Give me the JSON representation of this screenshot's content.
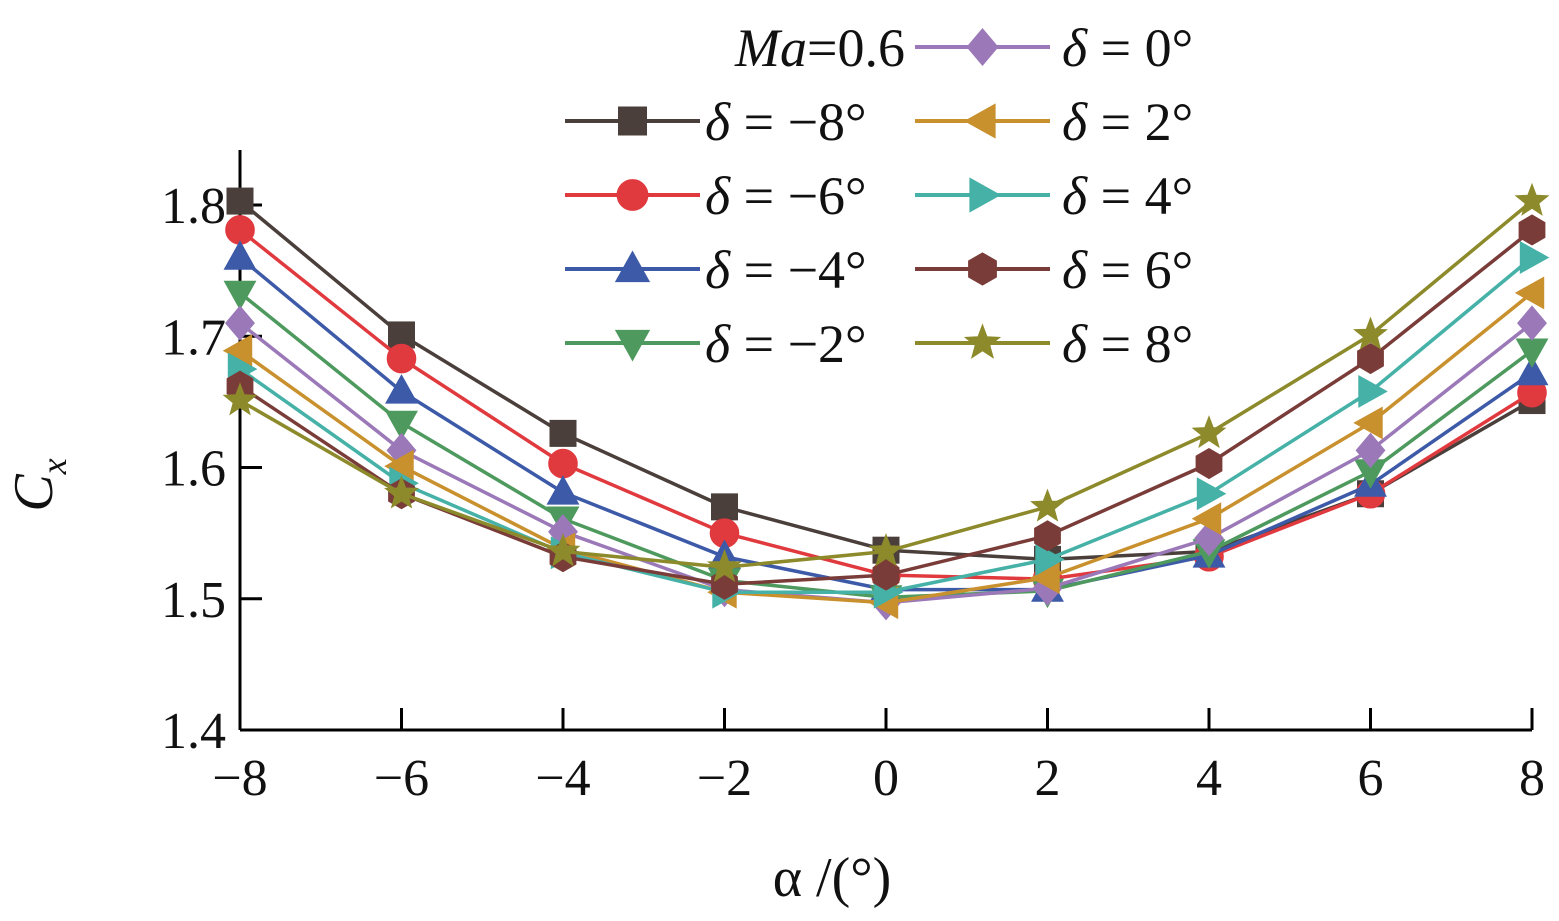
{
  "chart_data": {
    "type": "line",
    "title": "",
    "xlabel": "α /(°)",
    "ylabel": "Cx",
    "ylabel_parts": {
      "main": "C",
      "sub": "x"
    },
    "x": [
      -8,
      -6,
      -4,
      -2,
      0,
      2,
      4,
      6,
      8
    ],
    "x_tick_labels": [
      "−8",
      "−6",
      "−4",
      "−2",
      "0",
      "2",
      "4",
      "6",
      "8"
    ],
    "y_ticks": [
      1.4,
      1.5,
      1.6,
      1.7,
      1.8
    ],
    "y_tick_labels": [
      "1.4",
      "1.5",
      "1.6",
      "1.7",
      "1.8"
    ],
    "xlim": [
      -8,
      8
    ],
    "ylim": [
      1.4,
      1.8
    ],
    "grid": false,
    "legend_position": "top-center",
    "legend_header": "Ma=0.6",
    "series": [
      {
        "name": "δ = −8°",
        "color": "#4a3f3b",
        "marker": "square",
        "values": [
          1.803,
          1.701,
          1.626,
          1.57,
          1.537,
          1.53,
          1.536,
          1.58,
          1.651
        ]
      },
      {
        "name": "δ = −6°",
        "color": "#e0393e",
        "marker": "circle",
        "values": [
          1.781,
          1.683,
          1.603,
          1.55,
          1.518,
          1.515,
          1.532,
          1.58,
          1.657
        ]
      },
      {
        "name": "δ = −4°",
        "color": "#3d5aa8",
        "marker": "triangle-up",
        "values": [
          1.76,
          1.658,
          1.581,
          1.532,
          1.507,
          1.507,
          1.533,
          1.587,
          1.672
        ]
      },
      {
        "name": "δ = −2°",
        "color": "#4e9a5e",
        "marker": "triangle-down",
        "values": [
          1.733,
          1.634,
          1.561,
          1.514,
          1.501,
          1.506,
          1.536,
          1.597,
          1.689
        ]
      },
      {
        "name": "δ = 0°",
        "color": "#9b78b8",
        "marker": "diamond",
        "values": [
          1.71,
          1.613,
          1.551,
          1.507,
          1.497,
          1.508,
          1.546,
          1.613,
          1.71
        ]
      },
      {
        "name": "δ = 2°",
        "color": "#c9902e",
        "marker": "triangle-left",
        "values": [
          1.689,
          1.601,
          1.538,
          1.505,
          1.497,
          1.516,
          1.561,
          1.634,
          1.733
        ]
      },
      {
        "name": "δ = 4°",
        "color": "#45b1a7",
        "marker": "triangle-right",
        "values": [
          1.675,
          1.588,
          1.535,
          1.505,
          1.505,
          1.53,
          1.58,
          1.658,
          1.76
        ]
      },
      {
        "name": "δ = 6°",
        "color": "#7a3c38",
        "marker": "hexagon",
        "values": [
          1.662,
          1.58,
          1.532,
          1.511,
          1.518,
          1.548,
          1.603,
          1.683,
          1.781
        ]
      },
      {
        "name": "δ = 8°",
        "color": "#8c8a2a",
        "marker": "star",
        "values": [
          1.651,
          1.58,
          1.536,
          1.524,
          1.536,
          1.57,
          1.626,
          1.701,
          1.803
        ]
      }
    ]
  }
}
